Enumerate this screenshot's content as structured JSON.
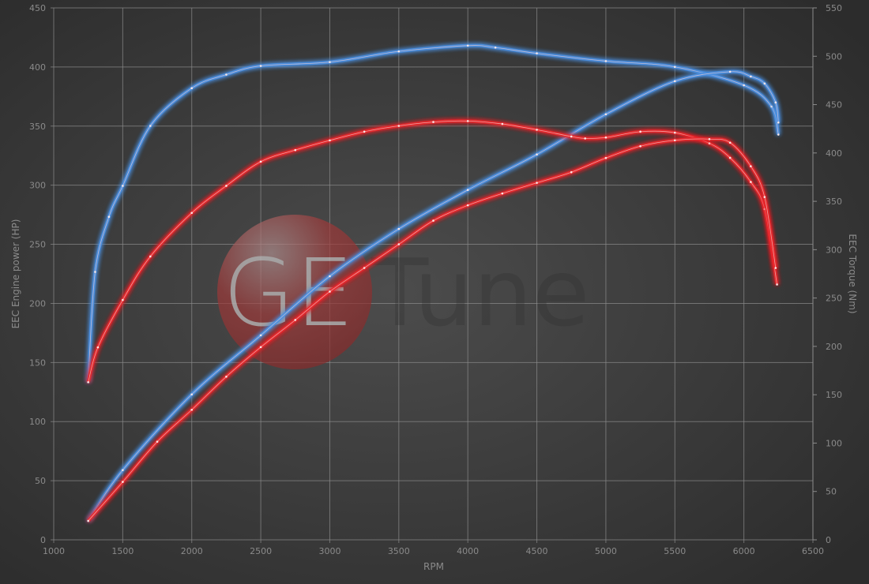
{
  "chart_data": {
    "type": "line",
    "title": "",
    "xlabel": "RPM",
    "ylabel": "EEC Engine power (HP)",
    "y2label": "EEC Torque (Nm)",
    "xlim": [
      1000,
      6500
    ],
    "ylim": [
      0,
      450
    ],
    "y2lim": [
      0,
      550
    ],
    "xticks": [
      1000,
      1500,
      2000,
      2500,
      3000,
      3500,
      4000,
      4500,
      5000,
      5500,
      6000,
      6500
    ],
    "yticks": [
      0,
      50,
      100,
      150,
      200,
      250,
      300,
      350,
      400,
      450
    ],
    "y2ticks": [
      0,
      50,
      100,
      150,
      200,
      250,
      300,
      350,
      400,
      450,
      500,
      550
    ],
    "grid": true,
    "legend": "none",
    "background": "#3a3a3a",
    "series": [
      {
        "axis": "right",
        "color": "#4a8fe0",
        "x": [
          1250,
          1300,
          1400,
          1500,
          1700,
          2000,
          2250,
          2500,
          3000,
          3500,
          4000,
          4200,
          4500,
          5000,
          5500,
          6000,
          6200,
          6250
        ],
        "y": [
          163,
          277,
          334,
          366,
          428,
          467,
          481,
          490,
          494,
          505,
          511,
          509,
          503,
          495,
          489,
          470,
          448,
          419
        ]
      },
      {
        "axis": "left",
        "color": "#4a8fe0",
        "x": [
          1250,
          1500,
          2000,
          2500,
          3000,
          3500,
          4000,
          4500,
          5000,
          5500,
          5900,
          6050,
          6150,
          6230,
          6250
        ],
        "y": [
          16,
          59,
          123,
          173,
          223,
          263,
          296,
          326,
          360,
          388,
          396,
          392,
          386,
          370,
          353
        ]
      },
      {
        "axis": "right",
        "color": "#e8262a",
        "x": [
          1250,
          1320,
          1500,
          1700,
          2000,
          2250,
          2500,
          2750,
          3000,
          3250,
          3500,
          3750,
          4000,
          4250,
          4500,
          4750,
          4850,
          5000,
          5250,
          5500,
          5750,
          5900,
          6050,
          6150,
          6240
        ],
        "y": [
          163,
          199,
          248,
          293,
          338,
          366,
          391,
          403,
          413,
          422,
          428,
          432,
          433,
          430,
          424,
          417,
          415,
          416,
          422,
          421,
          410,
          395,
          370,
          342,
          264
        ]
      },
      {
        "axis": "left",
        "color": "#e8262a",
        "x": [
          1250,
          1500,
          1750,
          2000,
          2250,
          2500,
          2750,
          3000,
          3250,
          3500,
          3750,
          4000,
          4250,
          4500,
          4750,
          5000,
          5250,
          5500,
          5750,
          5900,
          6050,
          6150,
          6230
        ],
        "y": [
          16,
          49,
          83,
          110,
          138,
          163,
          186,
          210,
          230,
          250,
          270,
          283,
          293,
          302,
          311,
          323,
          333,
          338,
          339,
          336,
          316,
          290,
          230
        ]
      }
    ]
  },
  "watermark": {
    "logo_text": "GE",
    "brand_text": "Tune",
    "circle_color": "#a83030"
  }
}
